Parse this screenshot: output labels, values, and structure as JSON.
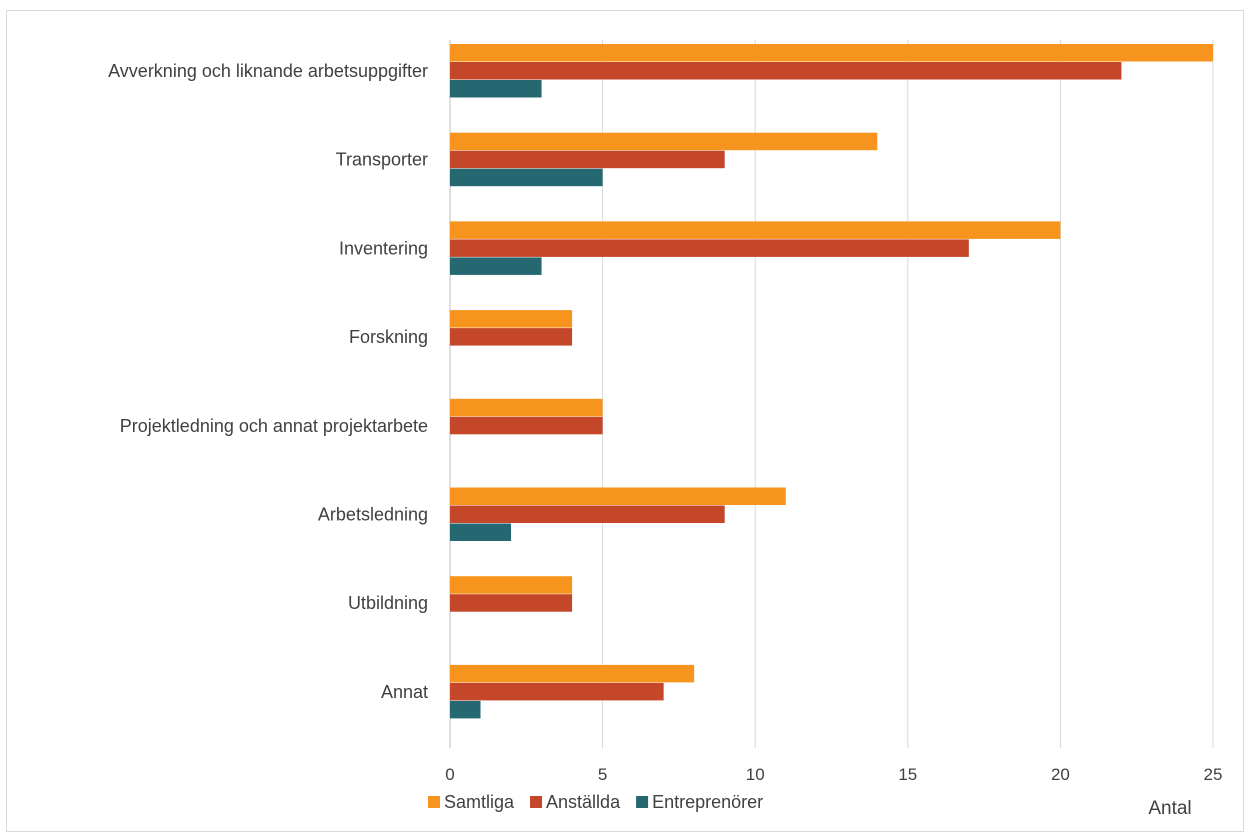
{
  "chart_data": {
    "type": "bar",
    "orientation": "horizontal",
    "categories": [
      "Avverkning och liknande arbetsuppgifter",
      "Transporter",
      "Inventering",
      "Forskning",
      "Projektledning och annat projektarbete",
      "Arbetsledning",
      "Utbildning",
      "Annat"
    ],
    "series": [
      {
        "name": "Samtliga",
        "color": "#F7941D",
        "values": [
          25,
          14,
          20,
          4,
          5,
          11,
          4,
          8
        ]
      },
      {
        "name": "Anställda",
        "color": "#C4472A",
        "values": [
          22,
          9,
          17,
          4,
          5,
          9,
          4,
          7
        ]
      },
      {
        "name": "Entreprenörer",
        "color": "#256872",
        "values": [
          3,
          5,
          3,
          0,
          0,
          2,
          0,
          1
        ]
      }
    ],
    "xlim": [
      0,
      25
    ],
    "xticks": [
      "0",
      "5",
      "10",
      "15",
      "20",
      "25"
    ],
    "xlabel": "Antal",
    "grid": true,
    "legend": "bottom"
  }
}
